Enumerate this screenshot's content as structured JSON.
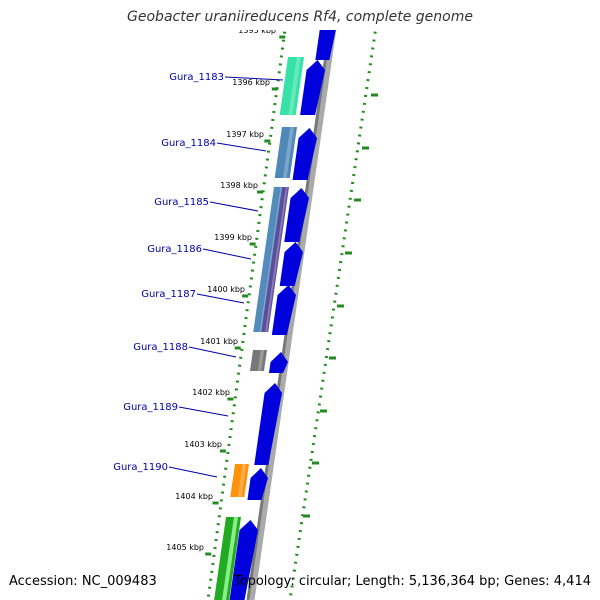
{
  "title": "Geobacter uraniireducens Rf4, complete genome",
  "accession": "Accession: NC_009483",
  "summary": "Topology: circular; Length: 5,136,364 bp; Genes: 4,414",
  "ticks": [
    "1395 kbp",
    "1396 kbp",
    "1397 kbp",
    "1398 kbp",
    "1399 kbp",
    "1400 kbp",
    "1401 kbp",
    "1402 kbp",
    "1403 kbp",
    "1404 kbp",
    "1405 kbp"
  ],
  "genes": [
    {
      "label": "Gura_1183",
      "color": "#2be0a0"
    },
    {
      "label": "Gura_1184",
      "color": "#4682b4"
    },
    {
      "label": "Gura_1185",
      "color": "#4a86b8"
    },
    {
      "label": "Gura_1186",
      "color": "#5b4a9a"
    },
    {
      "label": "Gura_1187",
      "color": "#4a86b8"
    },
    {
      "label": "Gura_1188",
      "color": "#707070"
    },
    {
      "label": "Gura_1189",
      "color": "#0000dd"
    },
    {
      "label": "Gura_1190",
      "color": "#ff8c00"
    }
  ],
  "colors": {
    "cds": "#0000dd",
    "label": "#0000aa",
    "backbone": "#888888",
    "dots": "#228b22",
    "extra_green": "#22aa22"
  }
}
